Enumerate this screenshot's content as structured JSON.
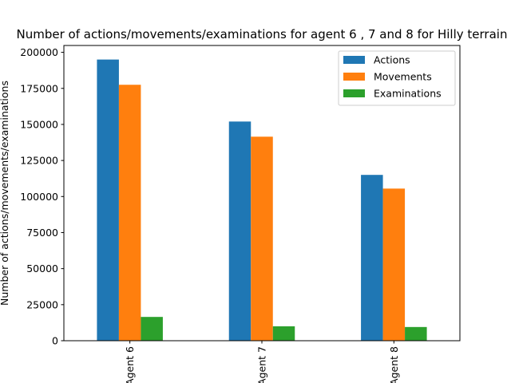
{
  "chart_data": {
    "type": "bar",
    "title": "Number of actions/movements/examinations for agent 6 , 7 and 8 for Hilly terrain",
    "xlabel": "",
    "ylabel": "Number of actions/movements/examinations",
    "categories": [
      "Agent 6",
      "Agent 7",
      "Agent 8"
    ],
    "series": [
      {
        "name": "Actions",
        "color": "#1f77b4",
        "values": [
          195000,
          152000,
          115000
        ]
      },
      {
        "name": "Movements",
        "color": "#ff7f0e",
        "values": [
          177500,
          141500,
          105500
        ]
      },
      {
        "name": "Examinations",
        "color": "#2ca02c",
        "values": [
          16500,
          10000,
          9500
        ]
      }
    ],
    "ylim": [
      0,
      204750
    ],
    "yticks": [
      0,
      25000,
      50000,
      75000,
      100000,
      125000,
      150000,
      175000,
      200000
    ],
    "ytick_labels": [
      "0",
      "25000",
      "50000",
      "75000",
      "100000",
      "125000",
      "150000",
      "175000",
      "200000"
    ],
    "grid": false,
    "legend_position": "top-right"
  }
}
